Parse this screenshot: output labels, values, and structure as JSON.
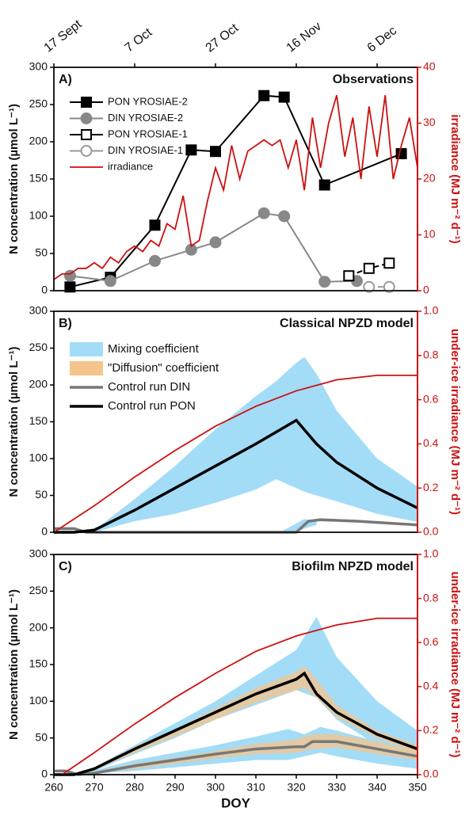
{
  "chart_data": [
    {
      "type": "line",
      "panel_label": "A)",
      "title": "Observations",
      "ylabel": "N concentration (µmol L⁻¹)",
      "y2label": "irradiance (MJ m⁻² d⁻¹)",
      "xlim": [
        260,
        350
      ],
      "ylim": [
        0,
        300
      ],
      "yticks": [
        0,
        50,
        100,
        150,
        200,
        250,
        300
      ],
      "y2lim": [
        0,
        40
      ],
      "y2ticks": [
        0,
        10,
        20,
        30,
        40
      ],
      "x2ticks": [
        {
          "value": 260,
          "label": "17 Sept"
        },
        {
          "value": 280,
          "label": "7 Oct"
        },
        {
          "value": 300,
          "label": "27 Oct"
        },
        {
          "value": 320,
          "label": "16 Nov"
        },
        {
          "value": 340,
          "label": "6 Dec"
        }
      ],
      "legend": "upper left",
      "series": [
        {
          "name": "PON YROSIAE-2",
          "color": "#000000",
          "marker": "square",
          "open": false,
          "linestyle": "solid",
          "x": [
            264,
            274,
            285,
            294,
            300,
            312,
            317,
            327,
            346
          ],
          "values": [
            5,
            18,
            88,
            189,
            187,
            262,
            260,
            142,
            184
          ]
        },
        {
          "name": "DIN YROSIAE-2",
          "color": "#888888",
          "marker": "circle",
          "open": false,
          "linestyle": "solid",
          "x": [
            264,
            274,
            285,
            294,
            300,
            312,
            317,
            327,
            335
          ],
          "values": [
            20,
            13,
            40,
            55,
            65,
            104,
            100,
            12,
            13
          ]
        },
        {
          "name": "PON YROSIAE-1",
          "color": "#000000",
          "marker": "square",
          "open": true,
          "linestyle": "dashed",
          "x": [
            333,
            338,
            343
          ],
          "values": [
            20,
            30,
            37
          ]
        },
        {
          "name": "DIN YROSIAE-1",
          "color": "#999999",
          "marker": "circle",
          "open": true,
          "linestyle": "dashed",
          "x": [
            338,
            343
          ],
          "values": [
            5,
            5
          ]
        },
        {
          "name": "irradiance",
          "color": "#cc1111",
          "axis": "y2",
          "linestyle": "solid",
          "x": [
            260,
            262,
            264,
            266,
            268,
            270,
            272,
            274,
            276,
            278,
            280,
            282,
            284,
            286,
            288,
            290,
            292,
            294,
            296,
            298,
            300,
            302,
            304,
            306,
            308,
            310,
            312,
            314,
            316,
            318,
            320,
            322,
            324,
            326,
            328,
            330,
            332,
            334,
            336,
            338,
            340,
            342,
            344,
            346,
            348,
            350
          ],
          "values": [
            2,
            3,
            3,
            4,
            4,
            5,
            4,
            6,
            5,
            7,
            8,
            7,
            9,
            8,
            12,
            11,
            17,
            8,
            9,
            16,
            22,
            18,
            26,
            20,
            25,
            26,
            27,
            26,
            27,
            22,
            27,
            18,
            31,
            22,
            30,
            35,
            24,
            31,
            20,
            33,
            24,
            35,
            20,
            26,
            31,
            22
          ]
        }
      ]
    },
    {
      "type": "line",
      "panel_label": "B)",
      "title": "Classical NPZD model",
      "ylabel": "N concentration (µmol L⁻¹)",
      "y2label": "under-ice irradiance (MJ m⁻² d⁻¹)",
      "xlim": [
        260,
        350
      ],
      "ylim": [
        0,
        300
      ],
      "yticks": [
        0,
        50,
        100,
        150,
        200,
        250,
        300
      ],
      "y2lim": [
        0,
        1
      ],
      "y2ticks": [
        {
          "value": 0,
          "label": "0.0"
        },
        0.2,
        0.4,
        0.6,
        0.8,
        {
          "value": 1,
          "label": "1.0"
        }
      ],
      "legend": "upper left",
      "series": [
        {
          "name": "Mixing coefficient",
          "color": "#a3dcf7",
          "style": "band",
          "bands": [
            {
              "x": [
                262,
                270,
                280,
                290,
                300,
                310,
                315,
                320,
                322,
                325,
                330,
                340,
                350
              ],
              "upper": [
                0,
                3,
                45,
                90,
                140,
                185,
                205,
                230,
                238,
                215,
                165,
                100,
                62
              ],
              "lower": [
                0,
                0,
                15,
                25,
                40,
                58,
                72,
                60,
                55,
                50,
                42,
                25,
                14
              ]
            },
            {
              "x": [
                316,
                320,
                322,
                325
              ],
              "upper": [
                0,
                12,
                18,
                15
              ],
              "lower": [
                0,
                0,
                5,
                10
              ]
            }
          ]
        },
        {
          "name": "\"Diffusion\" coefficient",
          "color": "#f5c48a",
          "style": "band",
          "bands": []
        },
        {
          "name": "Control run DIN",
          "color": "#777777",
          "linestyle": "solid",
          "x": [
            260,
            265,
            268,
            320,
            323,
            326,
            335,
            350
          ],
          "values": [
            5,
            5,
            0,
            0,
            15,
            17,
            15,
            10
          ]
        },
        {
          "name": "Control run PON",
          "color": "#000000",
          "linestyle": "solid",
          "x": [
            260,
            265,
            270,
            280,
            290,
            300,
            310,
            320,
            325,
            330,
            340,
            350
          ],
          "values": [
            0,
            0,
            3,
            30,
            60,
            90,
            120,
            152,
            120,
            95,
            60,
            33
          ]
        },
        {
          "color": "#cc1111",
          "axis": "y2",
          "linestyle": "solid",
          "x": [
            260,
            270,
            280,
            290,
            300,
            310,
            320,
            330,
            340,
            350
          ],
          "values": [
            0,
            0.12,
            0.25,
            0.37,
            0.48,
            0.57,
            0.64,
            0.69,
            0.71,
            0.71
          ]
        }
      ]
    },
    {
      "type": "line",
      "panel_label": "C)",
      "title": "Biofilm NPZD model",
      "ylabel": "N concentration (µmol L⁻¹)",
      "y2label": "under-ice irradiance (MJ m⁻² d⁻¹)",
      "xlabel": "DOY",
      "xlim": [
        260,
        350
      ],
      "xticks": [
        260,
        270,
        280,
        290,
        300,
        310,
        320,
        330,
        340,
        350
      ],
      "ylim": [
        0,
        300
      ],
      "yticks": [
        0,
        50,
        100,
        150,
        200,
        250,
        300
      ],
      "y2lim": [
        0,
        1
      ],
      "y2ticks": [
        {
          "value": 0,
          "label": "0.0"
        },
        0.2,
        0.4,
        0.6,
        0.8,
        {
          "value": 1,
          "label": "1.0"
        }
      ],
      "series": [
        {
          "color": "#a3dcf7",
          "style": "band",
          "bands": [
            {
              "x": [
                266,
                270,
                280,
                290,
                300,
                310,
                320,
                325,
                330,
                340,
                350
              ],
              "upper": [
                0,
                10,
                40,
                70,
                100,
                135,
                170,
                215,
                160,
                100,
                60
              ],
              "lower": [
                0,
                5,
                28,
                50,
                75,
                95,
                115,
                105,
                75,
                40,
                22
              ]
            },
            {
              "x": [
                266,
                280,
                300,
                310,
                318,
                322,
                326,
                330,
                340,
                350
              ],
              "upper": [
                0,
                20,
                40,
                52,
                62,
                55,
                65,
                60,
                45,
                30
              ],
              "lower": [
                0,
                5,
                15,
                20,
                20,
                25,
                30,
                25,
                15,
                8
              ]
            }
          ]
        },
        {
          "color": "#f5c48a",
          "style": "band",
          "bands": [
            {
              "x": [
                266,
                270,
                280,
                290,
                300,
                310,
                320,
                322,
                325,
                330,
                340,
                350
              ],
              "upper": [
                0,
                10,
                38,
                62,
                90,
                118,
                140,
                148,
                130,
                95,
                60,
                40
              ],
              "lower": [
                0,
                6,
                30,
                52,
                75,
                98,
                115,
                118,
                105,
                78,
                50,
                30
              ]
            },
            {
              "x": [
                266,
                280,
                290,
                300,
                310,
                320,
                324,
                330,
                340,
                350
              ],
              "upper": [
                0,
                15,
                23,
                32,
                42,
                48,
                55,
                55,
                45,
                32
              ],
              "lower": [
                0,
                8,
                15,
                22,
                28,
                30,
                35,
                37,
                28,
                20
              ]
            }
          ]
        },
        {
          "color": "#777777",
          "linestyle": "solid",
          "x": [
            260,
            263,
            266,
            270,
            280,
            290,
            300,
            310,
            320,
            322,
            324,
            330,
            340,
            350
          ],
          "values": [
            5,
            5,
            0,
            2,
            12,
            20,
            28,
            35,
            38,
            38,
            45,
            45,
            35,
            25
          ]
        },
        {
          "color": "#000000",
          "linestyle": "solid",
          "x": [
            260,
            265,
            270,
            280,
            290,
            300,
            310,
            320,
            322,
            325,
            330,
            340,
            350
          ],
          "values": [
            0,
            0,
            8,
            35,
            60,
            85,
            110,
            130,
            138,
            110,
            85,
            55,
            35
          ]
        },
        {
          "color": "#cc1111",
          "axis": "y2",
          "linestyle": "solid",
          "x": [
            262,
            270,
            280,
            290,
            300,
            310,
            320,
            330,
            340,
            350
          ],
          "values": [
            0,
            0.1,
            0.23,
            0.35,
            0.46,
            0.56,
            0.63,
            0.68,
            0.71,
            0.71
          ]
        }
      ]
    }
  ]
}
